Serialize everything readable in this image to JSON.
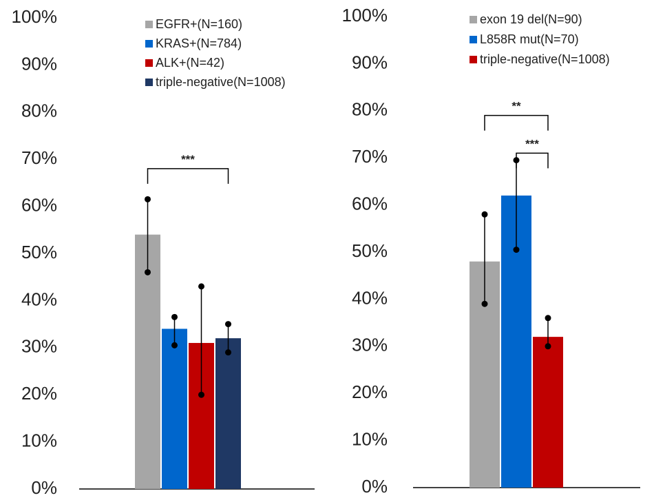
{
  "chart_data": [
    {
      "type": "bar",
      "title": "",
      "xlabel": "",
      "ylabel": "",
      "ylim": [
        0,
        100
      ],
      "yticks": [
        "0%",
        "10%",
        "20%",
        "30%",
        "40%",
        "50%",
        "60%",
        "70%",
        "80%",
        "90%",
        "100%"
      ],
      "legend_position": "top-right",
      "series": [
        {
          "name": "EGFR+(N=160)",
          "value": 54,
          "err_low": 46,
          "err_high": 61.5,
          "color": "#a6a6a6"
        },
        {
          "name": "KRAS+(N=784)",
          "value": 34,
          "err_low": 30.5,
          "err_high": 36.5,
          "color": "#0066cc"
        },
        {
          "name": "ALK+(N=42)",
          "value": 31,
          "err_low": 20,
          "err_high": 43,
          "color": "#c00000"
        },
        {
          "name": "triple-negative(N=1008)",
          "value": 32,
          "err_low": 29,
          "err_high": 35,
          "color": "#1f3864"
        }
      ],
      "significance": [
        {
          "from": 0,
          "to": 3,
          "level": 68,
          "label": "***"
        }
      ]
    },
    {
      "type": "bar",
      "title": "",
      "xlabel": "",
      "ylabel": "",
      "ylim": [
        0,
        100
      ],
      "yticks": [
        "0%",
        "10%",
        "20%",
        "30%",
        "40%",
        "50%",
        "60%",
        "70%",
        "80%",
        "90%",
        "100%"
      ],
      "legend_position": "top-right",
      "series": [
        {
          "name": "exon 19 del(N=90)",
          "value": 48,
          "err_low": 39,
          "err_high": 58,
          "color": "#a6a6a6"
        },
        {
          "name": "L858R mut(N=70)",
          "value": 62,
          "err_low": 50.5,
          "err_high": 69.5,
          "color": "#0066cc"
        },
        {
          "name": "triple-negative(N=1008)",
          "value": 32,
          "err_low": 30,
          "err_high": 36,
          "color": "#c00000"
        }
      ],
      "significance": [
        {
          "from": 0,
          "to": 2,
          "level": 79,
          "label": "**"
        },
        {
          "from": 1,
          "to": 2,
          "level": 71,
          "label": "***"
        }
      ]
    }
  ]
}
